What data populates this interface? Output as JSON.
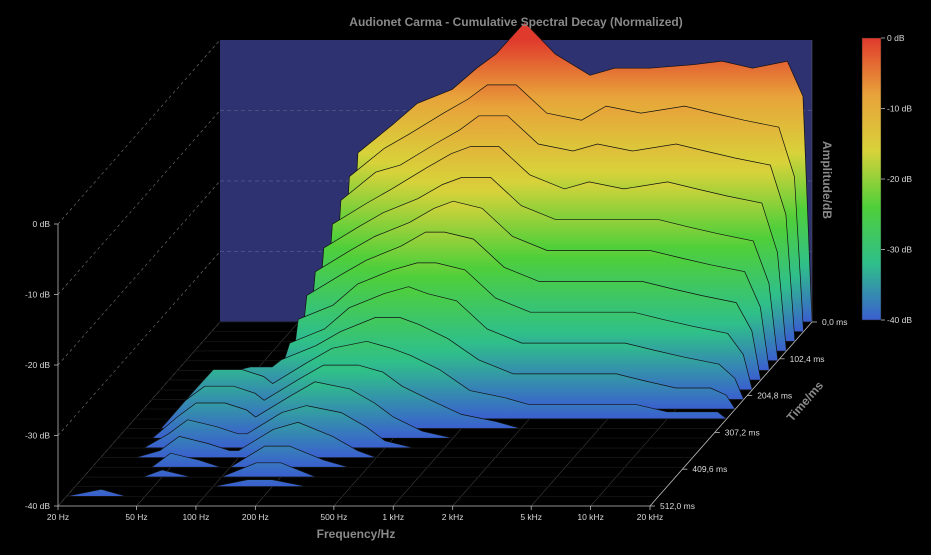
{
  "chart_data": {
    "type": "area",
    "subtype": "waterfall-3d",
    "title": "Audionet Carma - Cumulative Spectral Decay (Normalized)",
    "xlabel": "Frequency/Hz",
    "ylabel": "Amplitude/dB",
    "zlabel": "Time/ms",
    "x_scale": "log",
    "xlim": [
      20,
      20000
    ],
    "ylim": [
      -40,
      0
    ],
    "zlim": [
      0,
      512
    ],
    "x_ticks": [
      {
        "value": 20,
        "label": "20 Hz"
      },
      {
        "value": 50,
        "label": "50 Hz"
      },
      {
        "value": 100,
        "label": "100 Hz"
      },
      {
        "value": 200,
        "label": "200 Hz"
      },
      {
        "value": 500,
        "label": "500 Hz"
      },
      {
        "value": 1000,
        "label": "1 kHz"
      },
      {
        "value": 2000,
        "label": "2 kHz"
      },
      {
        "value": 5000,
        "label": "5 kHz"
      },
      {
        "value": 10000,
        "label": "10 kHz"
      },
      {
        "value": 20000,
        "label": "20 kHz"
      }
    ],
    "y_ticks": [
      {
        "value": 0,
        "label": "0 dB"
      },
      {
        "value": -10,
        "label": "-10 dB"
      },
      {
        "value": -20,
        "label": "-20 dB"
      },
      {
        "value": -30,
        "label": "-30 dB"
      },
      {
        "value": -40,
        "label": "-40 dB"
      }
    ],
    "z_ticks": [
      {
        "value": 0,
        "label": "0,0 ms"
      },
      {
        "value": 102.4,
        "label": "102,4 ms"
      },
      {
        "value": 204.8,
        "label": "204,8 ms"
      },
      {
        "value": 307.2,
        "label": "307,2 ms"
      },
      {
        "value": 409.6,
        "label": "409,6 ms"
      },
      {
        "value": 512,
        "label": "512,0 ms"
      }
    ],
    "colorbar": {
      "labels": [
        "0 dB",
        "-10 dB",
        "-20 dB",
        "-30 dB",
        "-40 dB"
      ],
      "stops": [
        "#e03a2c",
        "#e8a23a",
        "#d8d23a",
        "#4fcf3a",
        "#2fbf8a",
        "#3a5fcf"
      ]
    },
    "series": [
      {
        "x": [
          20,
          30,
          40,
          50,
          70,
          90,
          100,
          150,
          200,
          300,
          400,
          500,
          700,
          1000,
          1500,
          2000,
          3000,
          5000,
          7000,
          10000,
          15000,
          18000,
          20000
        ],
        "values": [
          -40,
          -40,
          -40,
          -40,
          -40,
          -40,
          -16,
          -12,
          -9,
          -7,
          -4,
          -2,
          2.5,
          -2,
          -5,
          -4,
          -4,
          -3.5,
          -3,
          -4,
          -3,
          -8,
          -40
        ]
      },
      {
        "x": [
          20,
          30,
          40,
          50,
          70,
          90,
          100,
          150,
          200,
          300,
          400,
          500,
          700,
          1000,
          1500,
          2000,
          3000,
          5000,
          7000,
          10000,
          15000,
          18000,
          20000
        ],
        "values": [
          -40,
          -40,
          -40,
          -40,
          -40,
          -40,
          -18,
          -14,
          -12,
          -9,
          -7,
          -5,
          -5,
          -9,
          -10,
          -8,
          -9,
          -8,
          -9,
          -10,
          -11,
          -18,
          -40
        ]
      },
      {
        "x": [
          20,
          30,
          40,
          50,
          70,
          90,
          100,
          150,
          200,
          300,
          400,
          500,
          700,
          1000,
          1500,
          2000,
          3000,
          5000,
          7000,
          10000,
          15000,
          18000,
          20000
        ],
        "values": [
          -40,
          -40,
          -40,
          -40,
          -40,
          -40,
          -20,
          -16,
          -15,
          -12,
          -10,
          -8,
          -8,
          -12,
          -13,
          -12,
          -13,
          -12,
          -13,
          -14,
          -15,
          -22,
          -40
        ]
      },
      {
        "x": [
          20,
          30,
          40,
          50,
          70,
          90,
          100,
          150,
          200,
          300,
          400,
          500,
          700,
          1000,
          1500,
          2000,
          3000,
          5000,
          7000,
          10000,
          15000,
          18000,
          20000
        ],
        "values": [
          -40,
          -40,
          -40,
          -40,
          -40,
          -40,
          -22,
          -19,
          -17,
          -14,
          -12,
          -11,
          -11,
          -15,
          -17,
          -16,
          -17,
          -16,
          -17,
          -18,
          -19,
          -26,
          -40
        ]
      },
      {
        "x": [
          20,
          30,
          40,
          50,
          70,
          90,
          100,
          150,
          200,
          300,
          400,
          500,
          700,
          1000,
          1500,
          2000,
          3000,
          5000,
          7000,
          10000,
          15000,
          18000,
          20000
        ],
        "values": [
          -40,
          -40,
          -40,
          -40,
          -40,
          -40,
          -24,
          -21,
          -19,
          -17,
          -15,
          -14,
          -14,
          -18,
          -20,
          -20,
          -20,
          -20,
          -21,
          -22,
          -23,
          -29,
          -40
        ]
      },
      {
        "x": [
          20,
          30,
          40,
          50,
          70,
          90,
          100,
          150,
          200,
          300,
          400,
          500,
          700,
          1000,
          1500,
          2000,
          3000,
          5000,
          7000,
          10000,
          15000,
          18000,
          20000
        ],
        "values": [
          -40,
          -40,
          -40,
          -40,
          -40,
          -40,
          -26,
          -23,
          -21,
          -19,
          -17,
          -16,
          -17,
          -21,
          -23,
          -23,
          -23,
          -23,
          -24,
          -25,
          -26,
          -31,
          -40
        ]
      },
      {
        "x": [
          20,
          30,
          40,
          50,
          70,
          90,
          100,
          150,
          200,
          300,
          400,
          500,
          700,
          1000,
          1500,
          2000,
          3000,
          5000,
          7000,
          10000,
          15000,
          18000,
          20000
        ],
        "values": [
          -40,
          -40,
          -40,
          -40,
          -40,
          -40,
          -28,
          -25,
          -23,
          -21,
          -19,
          -19,
          -20,
          -24,
          -26,
          -26,
          -26,
          -26,
          -27,
          -28,
          -29,
          -33,
          -40
        ]
      },
      {
        "x": [
          20,
          30,
          40,
          50,
          70,
          90,
          100,
          150,
          200,
          300,
          400,
          500,
          700,
          1000,
          1500,
          2000,
          3000,
          5000,
          7000,
          10000,
          15000,
          18000,
          20000
        ],
        "values": [
          -40,
          -40,
          -40,
          -40,
          -40,
          -40,
          -30,
          -28,
          -25,
          -23,
          -22,
          -22,
          -23,
          -27,
          -29,
          -29,
          -29,
          -29,
          -30,
          -31,
          -32,
          -35,
          -40
        ]
      },
      {
        "x": [
          20,
          30,
          40,
          50,
          70,
          90,
          100,
          150,
          200,
          300,
          400,
          500,
          700,
          1000,
          1500,
          2000,
          3000,
          5000,
          7000,
          10000,
          15000,
          18000,
          20000
        ],
        "values": [
          -40,
          -40,
          -40,
          -38,
          -36,
          -36,
          -32,
          -30,
          -27,
          -25,
          -24,
          -25,
          -26,
          -30,
          -32,
          -32,
          -32,
          -32,
          -33,
          -34,
          -35,
          -37,
          -40
        ]
      },
      {
        "x": [
          20,
          30,
          40,
          50,
          70,
          90,
          100,
          150,
          200,
          300,
          400,
          500,
          700,
          1000,
          1500,
          2000,
          3000,
          5000,
          7000,
          10000,
          15000,
          18000,
          20000
        ],
        "values": [
          -40,
          -40,
          -38,
          -35,
          -34,
          -34,
          -33,
          -31,
          -29,
          -27,
          -27,
          -28,
          -30,
          -33,
          -35,
          -35,
          -35,
          -35,
          -36,
          -37,
          -37,
          -38,
          -40
        ]
      },
      {
        "x": [
          20,
          30,
          40,
          50,
          70,
          90,
          100,
          150,
          200,
          300,
          400,
          500,
          700,
          1000,
          1500,
          2000,
          3000,
          5000,
          7000,
          10000,
          15000,
          18000,
          20000
        ],
        "values": [
          -40,
          -40,
          -36,
          -33,
          -33,
          -34,
          -35,
          -32,
          -30,
          -29,
          -30,
          -31,
          -33,
          -36,
          -37,
          -38,
          -38,
          -38,
          -38,
          -39,
          -39,
          -39,
          -40
        ]
      },
      {
        "x": [
          20,
          30,
          40,
          50,
          70,
          90,
          100,
          150,
          200,
          300,
          400,
          500,
          700,
          1000,
          1500,
          2000,
          3000,
          5000,
          7000,
          10000,
          15000,
          18000,
          20000
        ],
        "values": [
          -40,
          -40,
          -36,
          -34,
          -34,
          -35,
          -36,
          -33,
          -31,
          -31,
          -32,
          -34,
          -36,
          -38,
          -39,
          -40,
          -40,
          -40,
          -40,
          -40,
          -40,
          -40,
          -40
        ]
      },
      {
        "x": [
          20,
          30,
          40,
          50,
          70,
          90,
          100,
          150,
          200,
          300,
          400,
          500,
          700,
          1000,
          1500,
          2000,
          3000,
          5000,
          7000,
          10000,
          15000,
          18000,
          20000
        ],
        "values": [
          -40,
          -40,
          -37,
          -35,
          -35,
          -36,
          -37,
          -34,
          -32,
          -33,
          -35,
          -37,
          -39,
          -40,
          -40,
          -40,
          -40,
          -40,
          -40,
          -40,
          -40,
          -40,
          -40
        ]
      },
      {
        "x": [
          20,
          30,
          40,
          50,
          70,
          90,
          100,
          150,
          200,
          300,
          400,
          500,
          700,
          1000,
          1500,
          2000,
          3000,
          5000,
          7000,
          10000,
          15000,
          18000,
          20000
        ],
        "values": [
          -40,
          -40,
          -38,
          -36,
          -37,
          -38,
          -38,
          -35,
          -34,
          -35,
          -37,
          -39,
          -40,
          -40,
          -40,
          -40,
          -40,
          -40,
          -40,
          -40,
          -40,
          -40,
          -40
        ]
      },
      {
        "x": [
          20,
          30,
          40,
          50,
          70,
          90,
          100,
          150,
          200,
          300,
          400,
          500,
          700,
          1000,
          1500,
          2000,
          3000,
          5000,
          7000,
          10000,
          15000,
          18000,
          20000
        ],
        "values": [
          -40,
          -40,
          -39,
          -37,
          -38,
          -39,
          -39,
          -36,
          -35,
          -37,
          -39,
          -40,
          -40,
          -40,
          -40,
          -40,
          -40,
          -40,
          -40,
          -40,
          -40,
          -40,
          -40
        ]
      },
      {
        "x": [
          20,
          30,
          40,
          50,
          70,
          90,
          100,
          150,
          200,
          300,
          400,
          500,
          700,
          1000,
          1500,
          2000,
          3000,
          5000,
          7000,
          10000,
          15000,
          18000,
          20000
        ],
        "values": [
          -40,
          -40,
          -40,
          -38,
          -39,
          -40,
          -40,
          -37,
          -37,
          -39,
          -40,
          -40,
          -40,
          -40,
          -40,
          -40,
          -40,
          -40,
          -40,
          -40,
          -40,
          -40,
          -40
        ]
      },
      {
        "x": [
          20,
          30,
          40,
          50,
          70,
          90,
          100,
          150,
          200,
          300,
          400,
          500,
          700,
          1000,
          1500,
          2000,
          3000,
          5000,
          7000,
          10000,
          15000,
          18000,
          20000
        ],
        "values": [
          -40,
          -40,
          -40,
          -39,
          -40,
          -40,
          -40,
          -38,
          -38,
          -40,
          -40,
          -40,
          -40,
          -40,
          -40,
          -40,
          -40,
          -40,
          -40,
          -40,
          -40,
          -40,
          -40
        ]
      },
      {
        "x": [
          20,
          30,
          40,
          50,
          70,
          90,
          100,
          150,
          200,
          300,
          400,
          500,
          700,
          1000,
          1500,
          2000,
          3000,
          5000,
          7000,
          10000,
          15000,
          18000,
          20000
        ],
        "values": [
          -40,
          -40,
          -40,
          -40,
          -40,
          -40,
          -40,
          -39,
          -39,
          -40,
          -40,
          -40,
          -40,
          -40,
          -40,
          -40,
          -40,
          -40,
          -40,
          -40,
          -40,
          -40,
          -40
        ]
      },
      {
        "x": [
          20,
          30,
          40,
          50,
          70,
          90,
          100,
          150,
          200,
          300,
          400,
          500,
          700,
          1000,
          1500,
          2000,
          3000,
          5000,
          7000,
          10000,
          15000,
          18000,
          20000
        ],
        "values": [
          -40,
          -39,
          -40,
          -40,
          -40,
          -40,
          -40,
          -40,
          -40,
          -40,
          -40,
          -40,
          -40,
          -40,
          -40,
          -40,
          -40,
          -40,
          -40,
          -40,
          -40,
          -40,
          -40
        ]
      },
      {
        "x": [
          20,
          30,
          40,
          50,
          70,
          90,
          100,
          150,
          200,
          300,
          400,
          500,
          700,
          1000,
          1500,
          2000,
          3000,
          5000,
          7000,
          10000,
          15000,
          18000,
          20000
        ],
        "values": [
          -40,
          -40,
          -40,
          -40,
          -40,
          -40,
          -40,
          -40,
          -40,
          -40,
          -40,
          -40,
          -40,
          -40,
          -40,
          -40,
          -40,
          -40,
          -40,
          -40,
          -40,
          -40,
          -40
        ]
      }
    ]
  }
}
